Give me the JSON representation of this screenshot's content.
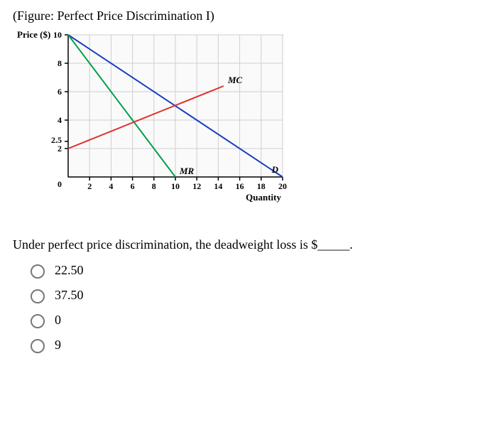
{
  "figure_title": "(Figure: Perfect Price Discrimination I)",
  "chart": {
    "type": "line",
    "y_label": "Price ($)",
    "x_label": "Quantity",
    "x_ticks": [
      2,
      4,
      6,
      8,
      10,
      12,
      14,
      16,
      18,
      20
    ],
    "y_ticks": [
      2,
      4,
      6,
      8,
      10
    ],
    "y_extra_tick": 2.5,
    "xlim": [
      0,
      20
    ],
    "ylim": [
      0,
      10
    ],
    "grid_color": "#cfcfcf",
    "axis_color": "#000000",
    "background_color": "#fafafa",
    "curves": {
      "demand": {
        "color": "#1a3fbf",
        "label": "D",
        "pts": [
          [
            0,
            10
          ],
          [
            20,
            0
          ]
        ]
      },
      "mr": {
        "color": "#00a04a",
        "label": "MR",
        "pts": [
          [
            0,
            10
          ],
          [
            10,
            0
          ]
        ]
      },
      "mc": {
        "color": "#e03030",
        "label": "MC",
        "pts": [
          [
            0,
            2
          ],
          [
            14.5,
            6.4
          ]
        ]
      }
    }
  },
  "question_text": "Under perfect price discrimination, the deadweight loss is $_____.",
  "options": [
    "22.50",
    "37.50",
    "0",
    "9"
  ]
}
